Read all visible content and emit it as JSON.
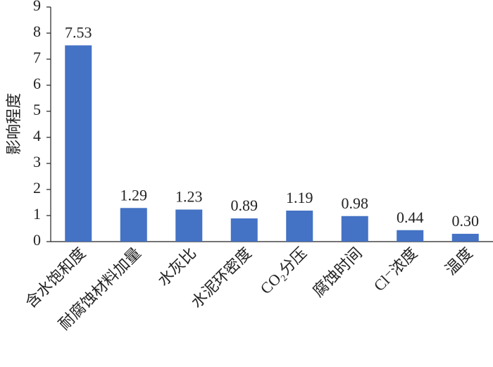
{
  "chart_data": {
    "type": "bar",
    "y_label": "影响程度",
    "categories": [
      "含水饱和度",
      "耐腐蚀材料加量",
      "水灰比",
      "水泥环密度",
      "CO₂分压",
      "腐蚀时间",
      "Cl⁻浓度",
      "温度"
    ],
    "values": [
      7.53,
      1.29,
      1.23,
      0.89,
      1.19,
      0.98,
      0.44,
      0.3
    ],
    "value_labels": [
      "7.53",
      "1.29",
      "1.23",
      "0.89",
      "1.19",
      "0.98",
      "0.44",
      "0.30"
    ],
    "color": "#4472c4",
    "ylim": [
      0,
      9
    ],
    "yticks": [
      0,
      1,
      2,
      3,
      4,
      5,
      6,
      7,
      8,
      9
    ]
  }
}
